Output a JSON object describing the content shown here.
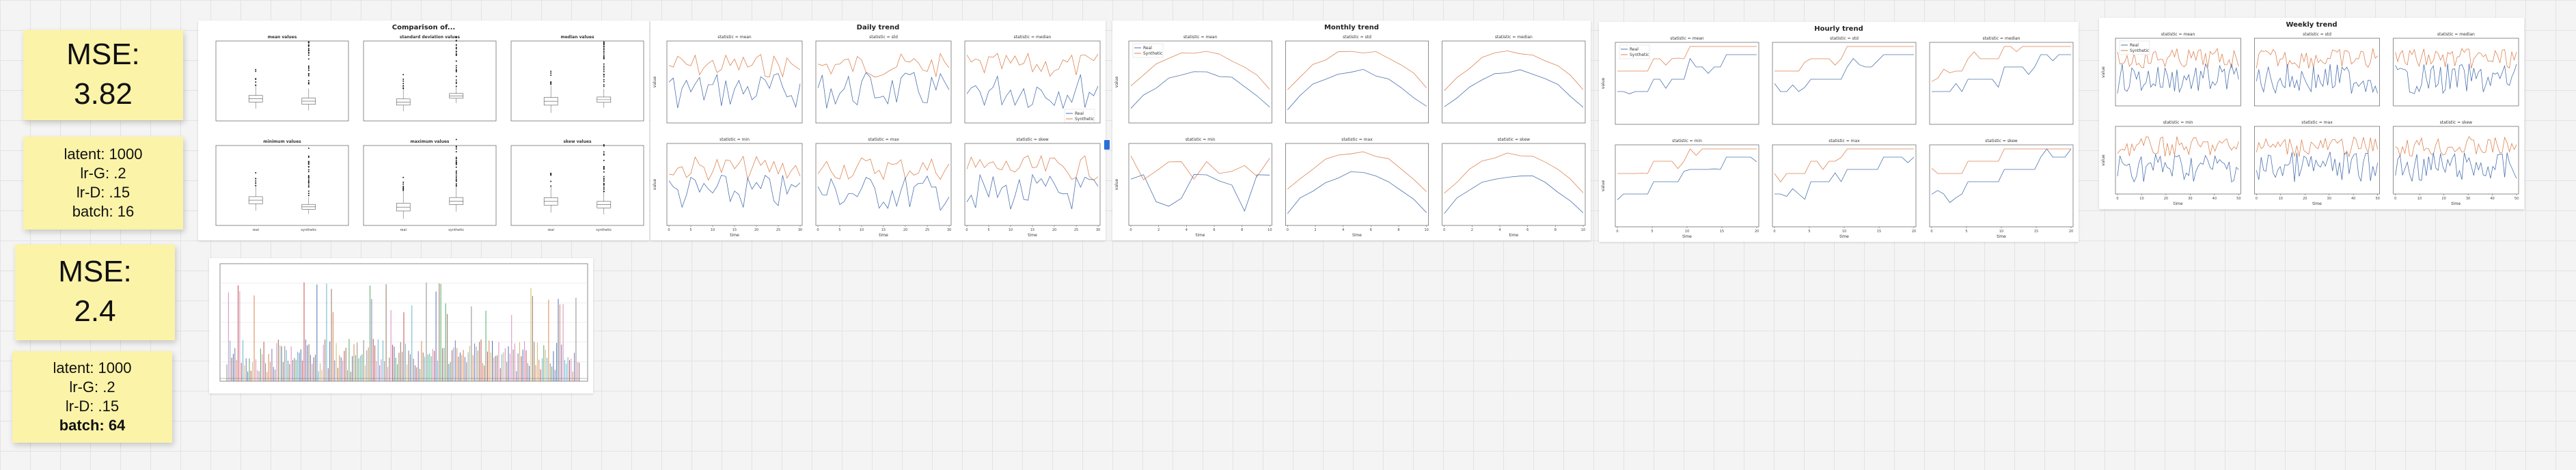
{
  "notes": [
    {
      "mse_label": "MSE:",
      "mse_value": "3.82",
      "params": [
        "latent: 1000",
        "lr-G: .2",
        "lr-D: .15",
        "batch: 16"
      ],
      "bold_last": false
    },
    {
      "mse_label": "MSE:",
      "mse_value": "2.4",
      "params": [
        "latent: 1000",
        "lr-G: .2",
        "lr-D: .15",
        "batch: 64"
      ],
      "bold_last": true
    }
  ],
  "colors": {
    "real": "#4c72b0",
    "synthetic": "#dd8452",
    "sticky": "#fbf3a8"
  },
  "legend": {
    "real": "Real",
    "synthetic": "Synthetic"
  },
  "boxplot_panel": {
    "title": "Comparison of...",
    "subplots": [
      {
        "title": "mean values"
      },
      {
        "title": "standard deviation values"
      },
      {
        "title": "median values"
      },
      {
        "title": "minimum values"
      },
      {
        "title": "maximum values"
      },
      {
        "title": "skew values"
      }
    ],
    "categories": [
      "real",
      "synthetic"
    ]
  },
  "trend_panels": [
    {
      "title": "Daily trend",
      "xlabel": "time",
      "ylabel": "value",
      "stats": [
        "statistic = mean",
        "statistic = std",
        "statistic = median",
        "statistic = min",
        "statistic = max",
        "statistic = skew"
      ],
      "xticks": [
        "0",
        "5",
        "10",
        "15",
        "20",
        "25",
        "30"
      ]
    },
    {
      "title": "Monthly trend",
      "xlabel": "time",
      "ylabel": "value",
      "stats": [
        "statistic = mean",
        "statistic = std",
        "statistic = median",
        "statistic = min",
        "statistic = max",
        "statistic = skew"
      ],
      "xticks": [
        "0",
        "2",
        "4",
        "6",
        "8",
        "10"
      ]
    },
    {
      "title": "Hourly trend",
      "xlabel": "time",
      "ylabel": "value",
      "stats": [
        "statistic = mean",
        "statistic = std",
        "statistic = median",
        "statistic = min",
        "statistic = max",
        "statistic = skew"
      ],
      "xticks": [
        "0",
        "5",
        "10",
        "15",
        "20"
      ]
    },
    {
      "title": "Weekly trend",
      "xlabel": "time",
      "ylabel": "value",
      "stats": [
        "statistic = mean",
        "statistic = std",
        "statistic = median",
        "statistic = min",
        "statistic = max",
        "statistic = skew"
      ],
      "xticks": [
        "0",
        "10",
        "20",
        "30",
        "40",
        "50"
      ]
    }
  ]
}
